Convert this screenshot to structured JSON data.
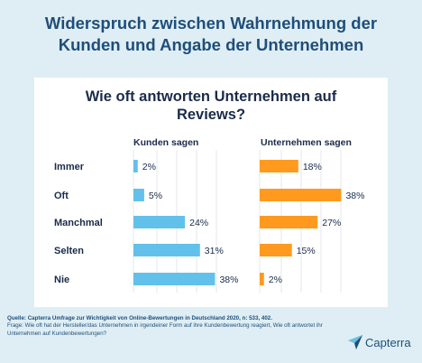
{
  "headline": {
    "line1": "Widerspruch zwischen Wahrnehmung der",
    "line2": "Kunden und Angabe der Unternehmen"
  },
  "chart_data": {
    "type": "bar",
    "orientation": "horizontal",
    "title_line1": "Wie oft antworten Unternehmen auf",
    "title_line2": "Reviews?",
    "categories": [
      "Immer",
      "Oft",
      "Manchmal",
      "Selten",
      "Nie"
    ],
    "series": [
      {
        "name": "Kunden sagen",
        "values": [
          2,
          5,
          24,
          31,
          38
        ],
        "color": "#62c1ea"
      },
      {
        "name": "Unternehmen sagen",
        "values": [
          18,
          38,
          27,
          15,
          2
        ],
        "color": "#ff9a1f"
      }
    ],
    "value_suffix": "%",
    "grid": true,
    "legend": "panel-headers"
  },
  "footer": {
    "source": "Quelle: Capterra Umfrage zur Wichtigkeit von Online-Bewertungen in Deutschland 2020, n: 533, 402.",
    "question": "Frage: Wie oft hat der Hersteller/das Unternehmen in irgendeiner Form auf ihre Kundenbewertung reagiert, Wie oft antwortet ihr Unternehmen auf Kundenbewertungen?"
  },
  "brand": {
    "name": "Capterra",
    "icon": "capterra-arrow-icon"
  }
}
